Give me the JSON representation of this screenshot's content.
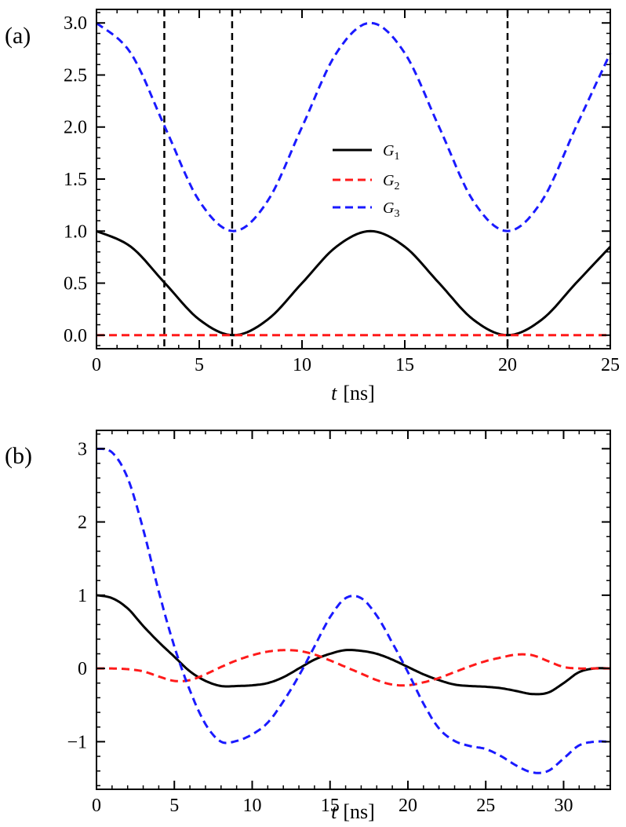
{
  "chart_data": [
    {
      "type": "line",
      "panel_label": "(a)",
      "xlabel_var": "t",
      "xlabel_unit": "[ns]",
      "ylabel": "",
      "xlim": [
        0,
        25
      ],
      "ylim": [
        -0.13,
        3.13
      ],
      "xticks": [
        0,
        5,
        10,
        15,
        20,
        25
      ],
      "xtick_labels": [
        "0",
        "5",
        "10",
        "15",
        "20",
        "25"
      ],
      "yticks": [
        0.0,
        0.5,
        1.0,
        1.5,
        2.0,
        2.5,
        3.0
      ],
      "ytick_labels": [
        "0.0",
        "0.5",
        "1.0",
        "1.5",
        "2.0",
        "2.5",
        "3.0"
      ],
      "vlines": [
        3.3,
        6.6,
        20.0
      ],
      "legend": {
        "placement": "center"
      },
      "series": [
        {
          "name": "G1",
          "label_base": "G",
          "label_sub": "1",
          "color": "#000000",
          "dash": "solid",
          "x": [
            0,
            1.67,
            3.33,
            5.0,
            6.67,
            8.33,
            10.0,
            11.67,
            13.33,
            15.0,
            16.67,
            18.33,
            20.0,
            21.67,
            23.33,
            25.0
          ],
          "values": [
            1.0,
            0.85,
            0.5,
            0.15,
            0.0,
            0.15,
            0.5,
            0.85,
            1.0,
            0.85,
            0.5,
            0.15,
            0.0,
            0.15,
            0.5,
            0.85
          ]
        },
        {
          "name": "G2",
          "label_base": "G",
          "label_sub": "2",
          "color": "#ff1a1a",
          "dash": "dashed",
          "x": [
            0,
            25
          ],
          "values": [
            0.0,
            0.0
          ]
        },
        {
          "name": "G3",
          "label_base": "G",
          "label_sub": "3",
          "color": "#1a1aff",
          "dash": "dashed",
          "x": [
            0,
            1.67,
            3.33,
            5.0,
            6.67,
            8.33,
            10.0,
            11.67,
            13.33,
            15.0,
            16.67,
            18.33,
            20.0,
            21.67,
            23.33,
            25.0
          ],
          "values": [
            3.0,
            2.71,
            2.0,
            1.29,
            1.0,
            1.29,
            2.0,
            2.71,
            3.0,
            2.71,
            2.0,
            1.29,
            1.0,
            1.29,
            2.0,
            2.71
          ]
        }
      ]
    },
    {
      "type": "line",
      "panel_label": "(b)",
      "xlabel_var": "t",
      "xlabel_unit": "[ns]",
      "ylabel": "",
      "xlim": [
        0,
        33
      ],
      "ylim": [
        -1.65,
        3.25
      ],
      "xticks": [
        0,
        5,
        10,
        15,
        20,
        25,
        30
      ],
      "xtick_labels": [
        "0",
        "5",
        "10",
        "15",
        "20",
        "25",
        "30"
      ],
      "yticks": [
        -1,
        0,
        1,
        2,
        3
      ],
      "ytick_labels": [
        "−1",
        "0",
        "1",
        "2",
        "3"
      ],
      "series": [
        {
          "name": "G1",
          "color": "#000000",
          "dash": "solid",
          "x": [
            0,
            1,
            2,
            3,
            4,
            5,
            6,
            7,
            8,
            9,
            10,
            11,
            12,
            13,
            14,
            15,
            16,
            17,
            18,
            19,
            20,
            21,
            22,
            23,
            24,
            25,
            26,
            27,
            28,
            29,
            30,
            31,
            32,
            33
          ],
          "values": [
            1.0,
            0.96,
            0.82,
            0.58,
            0.36,
            0.16,
            -0.04,
            -0.17,
            -0.24,
            -0.24,
            -0.23,
            -0.2,
            -0.12,
            0.0,
            0.12,
            0.2,
            0.25,
            0.24,
            0.2,
            0.12,
            0.02,
            -0.08,
            -0.16,
            -0.22,
            -0.24,
            -0.25,
            -0.27,
            -0.31,
            -0.35,
            -0.33,
            -0.2,
            -0.05,
            0.0,
            0.0
          ]
        },
        {
          "name": "G2",
          "color": "#ff1a1a",
          "dash": "dashed",
          "x": [
            0,
            1,
            2,
            3,
            4,
            5,
            6,
            7,
            8,
            9,
            10,
            11,
            12,
            13,
            14,
            15,
            16,
            17,
            18,
            19,
            20,
            21,
            22,
            23,
            24,
            25,
            26,
            27,
            28,
            29,
            30,
            31,
            32,
            33
          ],
          "values": [
            0.0,
            0.0,
            -0.01,
            -0.04,
            -0.11,
            -0.17,
            -0.16,
            -0.08,
            0.02,
            0.11,
            0.18,
            0.23,
            0.25,
            0.24,
            0.19,
            0.11,
            0.02,
            -0.07,
            -0.16,
            -0.22,
            -0.23,
            -0.19,
            -0.13,
            -0.05,
            0.03,
            0.1,
            0.15,
            0.19,
            0.18,
            0.1,
            0.02,
            0.0,
            0.0,
            0.0
          ]
        },
        {
          "name": "G3",
          "color": "#1a1aff",
          "dash": "dashed",
          "x": [
            0,
            1,
            2,
            3,
            4,
            5,
            6,
            7,
            8,
            9,
            10,
            11,
            12,
            13,
            14,
            15,
            16,
            17,
            18,
            19,
            20,
            21,
            22,
            23,
            24,
            25,
            26,
            27,
            28,
            29,
            30,
            31,
            32,
            33
          ],
          "values": [
            3.0,
            2.95,
            2.6,
            1.9,
            1.05,
            0.3,
            -0.3,
            -0.76,
            -1.0,
            -0.99,
            -0.9,
            -0.74,
            -0.45,
            -0.1,
            0.3,
            0.7,
            0.96,
            0.96,
            0.72,
            0.35,
            -0.05,
            -0.48,
            -0.82,
            -0.99,
            -1.06,
            -1.1,
            -1.2,
            -1.33,
            -1.42,
            -1.4,
            -1.23,
            -1.05,
            -1.0,
            -1.0
          ]
        }
      ]
    }
  ]
}
